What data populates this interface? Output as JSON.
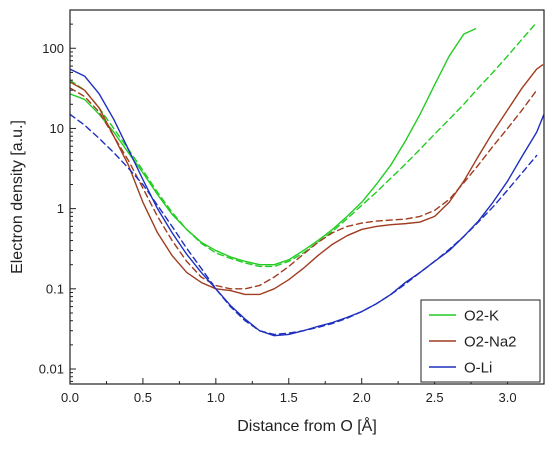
{
  "chart_data": {
    "type": "line",
    "title": "",
    "xlabel": "Distance from O [Å]",
    "ylabel": "Electron density [a.u.]",
    "xlim": [
      0.0,
      3.25
    ],
    "ylim": [
      0.0065,
      300
    ],
    "yscale": "log",
    "xticks": [
      0.0,
      0.5,
      1.0,
      1.5,
      2.0,
      2.5,
      3.0
    ],
    "xtick_labels": [
      "0.0",
      "0.5",
      "1.0",
      "1.5",
      "2.0",
      "2.5",
      "3.0"
    ],
    "yticks": [
      0.01,
      0.1,
      1,
      10,
      100
    ],
    "ytick_labels": [
      "0.01",
      "0.1",
      "1",
      "10",
      "100"
    ],
    "grid": false,
    "legend_position": "bottom-right",
    "series": [
      {
        "name": "O2-K",
        "color": "#22cc22",
        "style": "solid",
        "x": [
          0.0,
          0.1,
          0.2,
          0.3,
          0.4,
          0.5,
          0.6,
          0.7,
          0.8,
          0.9,
          1.0,
          1.1,
          1.2,
          1.3,
          1.4,
          1.5,
          1.6,
          1.7,
          1.8,
          1.9,
          2.0,
          2.1,
          2.2,
          2.3,
          2.4,
          2.5,
          2.6,
          2.7,
          2.78
        ],
        "y": [
          27,
          23,
          15,
          9,
          5,
          2.8,
          1.5,
          0.85,
          0.55,
          0.38,
          0.3,
          0.25,
          0.22,
          0.2,
          0.2,
          0.23,
          0.3,
          0.4,
          0.55,
          0.8,
          1.2,
          2.0,
          3.5,
          7,
          15,
          35,
          80,
          150,
          175
        ]
      },
      {
        "name": "",
        "color": "#22cc22",
        "style": "dashed",
        "x": [
          0.0,
          0.1,
          0.2,
          0.3,
          0.4,
          0.5,
          0.6,
          0.7,
          0.8,
          0.9,
          1.0,
          1.1,
          1.2,
          1.3,
          1.4,
          1.5,
          1.6,
          1.7,
          1.8,
          1.9,
          2.0,
          2.1,
          2.2,
          2.3,
          2.4,
          2.5,
          2.6,
          2.7,
          2.8,
          2.9,
          3.0,
          3.1,
          3.2
        ],
        "y": [
          40,
          30,
          18,
          10,
          5.5,
          3.0,
          1.6,
          0.9,
          0.55,
          0.37,
          0.28,
          0.24,
          0.21,
          0.19,
          0.19,
          0.22,
          0.28,
          0.38,
          0.52,
          0.75,
          1.1,
          1.6,
          2.4,
          3.6,
          5.5,
          8.5,
          13,
          20,
          32,
          50,
          80,
          130,
          210
        ]
      },
      {
        "name": "O2-Na2",
        "color": "#a03c20",
        "style": "solid",
        "x": [
          0.0,
          0.1,
          0.2,
          0.3,
          0.4,
          0.5,
          0.6,
          0.7,
          0.8,
          0.9,
          1.0,
          1.1,
          1.2,
          1.3,
          1.4,
          1.5,
          1.6,
          1.7,
          1.8,
          1.9,
          2.0,
          2.1,
          2.2,
          2.3,
          2.4,
          2.5,
          2.6,
          2.7,
          2.8,
          2.9,
          3.0,
          3.1,
          3.2,
          3.24
        ],
        "y": [
          38,
          30,
          18,
          8,
          3.5,
          1.2,
          0.5,
          0.26,
          0.16,
          0.12,
          0.1,
          0.095,
          0.085,
          0.085,
          0.1,
          0.13,
          0.18,
          0.26,
          0.36,
          0.46,
          0.55,
          0.6,
          0.63,
          0.65,
          0.68,
          0.8,
          1.2,
          2.2,
          4.5,
          9,
          17,
          32,
          55,
          62
        ]
      },
      {
        "name": "",
        "color": "#a03c20",
        "style": "dashed",
        "x": [
          0.0,
          0.1,
          0.2,
          0.3,
          0.4,
          0.5,
          0.6,
          0.7,
          0.8,
          0.9,
          1.0,
          1.1,
          1.2,
          1.3,
          1.4,
          1.5,
          1.6,
          1.7,
          1.8,
          1.9,
          2.0,
          2.1,
          2.2,
          2.3,
          2.4,
          2.5,
          2.6,
          2.7,
          2.8,
          2.9,
          3.0,
          3.1,
          3.2
        ],
        "y": [
          32,
          25,
          16,
          8,
          4.0,
          1.8,
          0.8,
          0.4,
          0.22,
          0.14,
          0.11,
          0.1,
          0.1,
          0.11,
          0.14,
          0.19,
          0.27,
          0.38,
          0.5,
          0.6,
          0.66,
          0.7,
          0.72,
          0.74,
          0.8,
          0.95,
          1.3,
          2.1,
          3.5,
          6,
          10,
          17,
          30
        ]
      },
      {
        "name": "O-Li",
        "color": "#1f2fbf",
        "style": "solid",
        "x": [
          0.0,
          0.1,
          0.2,
          0.3,
          0.4,
          0.5,
          0.6,
          0.7,
          0.8,
          0.9,
          1.0,
          1.1,
          1.2,
          1.3,
          1.4,
          1.5,
          1.6,
          1.7,
          1.8,
          1.9,
          2.0,
          2.1,
          2.2,
          2.3,
          2.4,
          2.5,
          2.6,
          2.7,
          2.8,
          2.9,
          3.0,
          3.1,
          3.2,
          3.25
        ],
        "y": [
          55,
          45,
          27,
          13,
          5.5,
          2.3,
          1.0,
          0.5,
          0.27,
          0.16,
          0.1,
          0.062,
          0.042,
          0.03,
          0.026,
          0.027,
          0.03,
          0.034,
          0.038,
          0.044,
          0.052,
          0.065,
          0.085,
          0.12,
          0.16,
          0.22,
          0.3,
          0.45,
          0.7,
          1.2,
          2.2,
          4.5,
          9,
          15
        ]
      },
      {
        "name": "",
        "color": "#1f2fbf",
        "style": "dashed",
        "x": [
          0.0,
          0.1,
          0.2,
          0.3,
          0.4,
          0.5,
          0.6,
          0.7,
          0.8,
          0.9,
          1.0,
          1.1,
          1.2,
          1.3,
          1.4,
          1.5,
          1.6,
          1.7,
          1.8,
          1.9,
          2.0,
          2.1,
          2.2,
          2.3,
          2.4,
          2.5,
          2.6,
          2.7,
          2.8,
          2.9,
          3.0,
          3.1,
          3.2
        ],
        "y": [
          15,
          11,
          7.5,
          5,
          3.2,
          2.0,
          1.1,
          0.6,
          0.32,
          0.18,
          0.1,
          0.06,
          0.04,
          0.03,
          0.027,
          0.028,
          0.03,
          0.033,
          0.037,
          0.043,
          0.052,
          0.065,
          0.085,
          0.115,
          0.16,
          0.22,
          0.31,
          0.45,
          0.68,
          1.05,
          1.7,
          2.8,
          4.6
        ]
      }
    ]
  }
}
